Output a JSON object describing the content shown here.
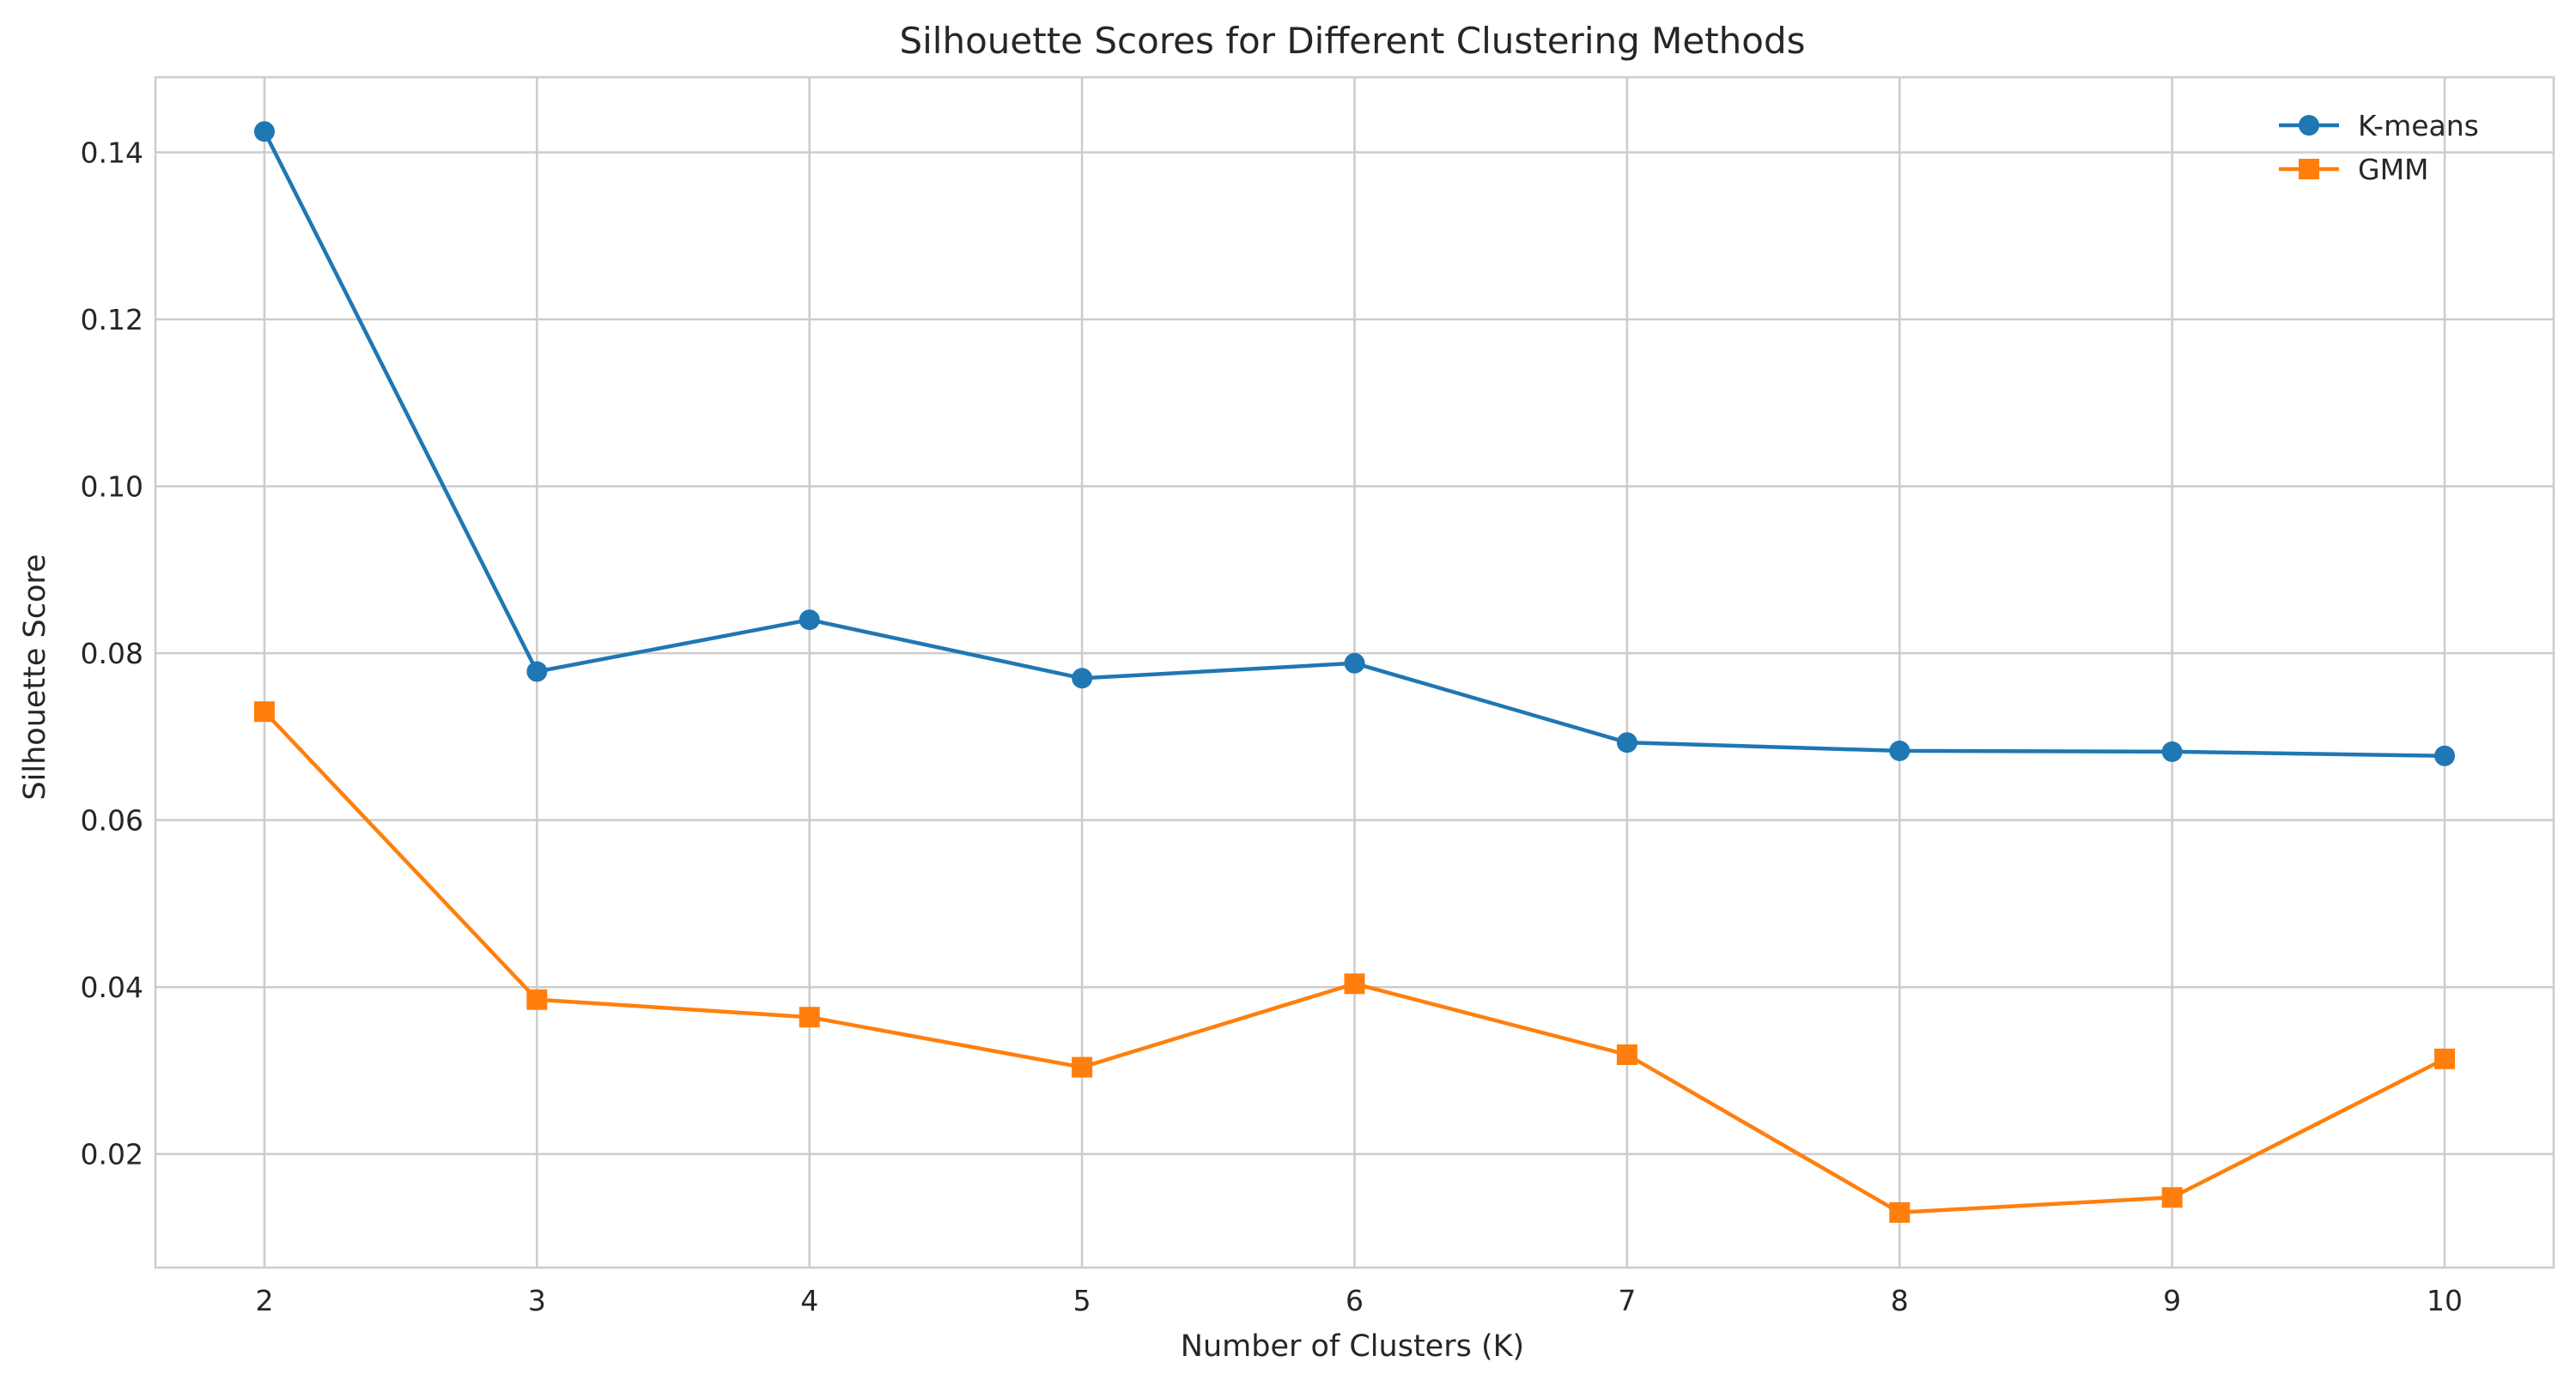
{
  "chart_data": {
    "type": "line",
    "title": "Silhouette Scores for Different Clustering Methods",
    "xlabel": "Number of Clusters (K)",
    "ylabel": "Silhouette Score",
    "x": [
      2,
      3,
      4,
      5,
      6,
      7,
      8,
      9,
      10
    ],
    "x_tick_labels": [
      "2",
      "3",
      "4",
      "5",
      "6",
      "7",
      "8",
      "9",
      "10"
    ],
    "xlim": [
      1.6,
      10.4
    ],
    "ylim": [
      0.0064,
      0.149
    ],
    "y_ticks": [
      0.02,
      0.04,
      0.06,
      0.08,
      0.1,
      0.12,
      0.14
    ],
    "y_tick_labels": [
      "0.02",
      "0.04",
      "0.06",
      "0.08",
      "0.10",
      "0.12",
      "0.14"
    ],
    "grid": true,
    "legend_position": "top-right",
    "series": [
      {
        "name": "K-means",
        "marker": "circle",
        "color": "#1f77b4",
        "values": [
          0.1425,
          0.0778,
          0.084,
          0.077,
          0.0788,
          0.0693,
          0.0683,
          0.0682,
          0.0677
        ]
      },
      {
        "name": "GMM",
        "marker": "square",
        "color": "#ff7f0e",
        "values": [
          0.073,
          0.0385,
          0.0364,
          0.0304,
          0.0404,
          0.0319,
          0.013,
          0.0148,
          0.0314
        ]
      }
    ]
  }
}
